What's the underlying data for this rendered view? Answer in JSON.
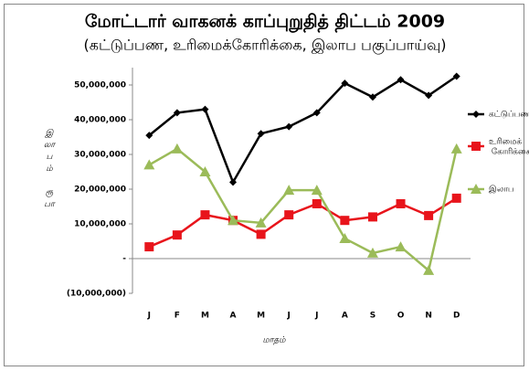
{
  "chart_data": {
    "type": "line",
    "title": "மோட்டார் வாகனக் காப்புறுதித் திட்டம் 2009",
    "subtitle": "(கட்டுப்பண, உரிமைக்கோரிக்கை, இலாப பகுப்பாய்வு)",
    "y_label": "இலாபம் ரூபா",
    "x_label": "மாதம்",
    "categories": [
      "J",
      "F",
      "M",
      "A",
      "M",
      "J",
      "J",
      "A",
      "S",
      "O",
      "N",
      "D"
    ],
    "series": [
      {
        "name": "கட்டுப்பண",
        "color": "#000000",
        "marker": "diamond",
        "values": [
          35500000,
          42000000,
          43000000,
          22000000,
          36000000,
          38000000,
          42000000,
          50500000,
          46500000,
          51500000,
          47000000,
          52500000
        ]
      },
      {
        "name": "உரிமைக் கோரிக்கை",
        "color": "#e8141b",
        "marker": "square",
        "values": [
          3400000,
          6800000,
          12600000,
          11000000,
          7000000,
          12600000,
          15800000,
          11000000,
          12000000,
          15800000,
          12400000,
          17400000
        ]
      },
      {
        "name": "இலாப",
        "color": "#9bbb59",
        "marker": "triangle",
        "values": [
          27000000,
          31600000,
          25000000,
          11000000,
          10300000,
          19700000,
          19700000,
          5800000,
          1600000,
          3400000,
          -3400000,
          31600000
        ]
      }
    ],
    "ylim": [
      -10000000,
      55000000
    ],
    "yticks": [
      {
        "value": -10000000,
        "label": "(10,000,000)"
      },
      {
        "value": 0,
        "label": "-"
      },
      {
        "value": 10000000,
        "label": "10,000,000"
      },
      {
        "value": 20000000,
        "label": "20,000,000"
      },
      {
        "value": 30000000,
        "label": "30,000,000"
      },
      {
        "value": 40000000,
        "label": "40,000,000"
      },
      {
        "value": 50000000,
        "label": "50,000,000"
      }
    ],
    "grid": false,
    "legend": "right"
  }
}
